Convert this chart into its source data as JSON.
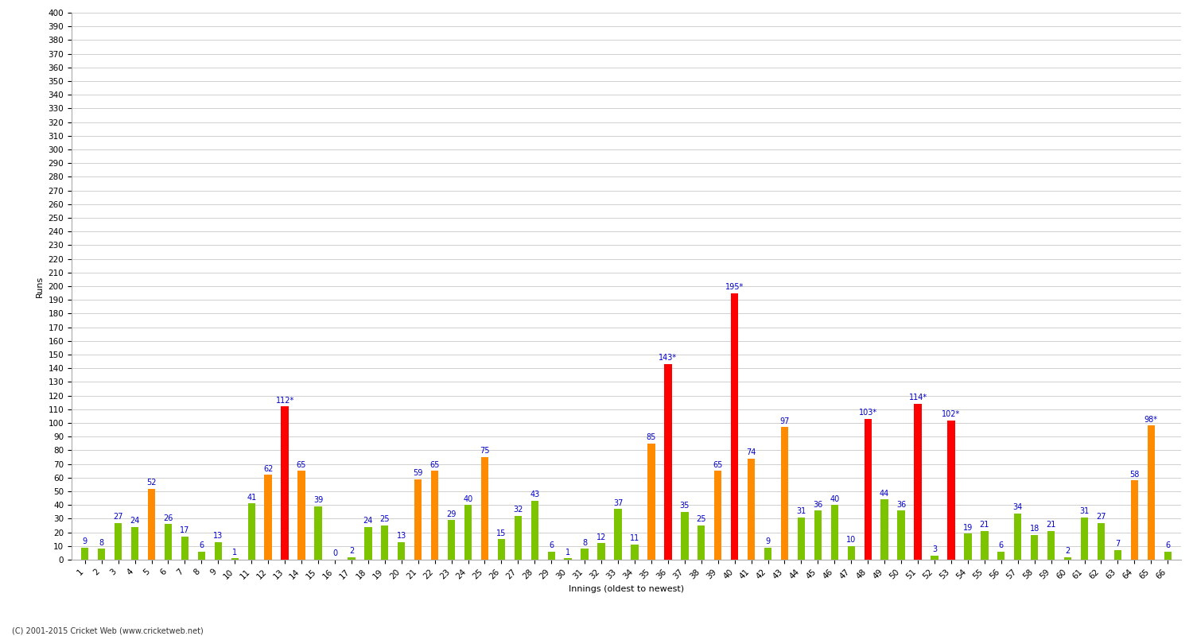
{
  "xlabel": "Innings (oldest to newest)",
  "ylabel": "Runs",
  "ylim": [
    0,
    400
  ],
  "innings": [
    1,
    2,
    3,
    4,
    5,
    6,
    7,
    8,
    9,
    10,
    11,
    12,
    13,
    14,
    15,
    16,
    17,
    18,
    19,
    20,
    21,
    22,
    23,
    24,
    25,
    26,
    27,
    28,
    29,
    30,
    31,
    32,
    33,
    34,
    35,
    36,
    37,
    38,
    39,
    40,
    41,
    42,
    43,
    44,
    45,
    46,
    47,
    48,
    49,
    50,
    51,
    52,
    53,
    54,
    55,
    56,
    57,
    58,
    59,
    60,
    61,
    62,
    63,
    64,
    65,
    66
  ],
  "scores": [
    9,
    8,
    27,
    24,
    52,
    26,
    17,
    6,
    13,
    1,
    41,
    62,
    112,
    65,
    39,
    0,
    2,
    24,
    25,
    13,
    59,
    65,
    29,
    40,
    75,
    15,
    32,
    43,
    6,
    1,
    8,
    12,
    37,
    11,
    85,
    143,
    35,
    25,
    65,
    195,
    74,
    9,
    97,
    31,
    36,
    40,
    10,
    103,
    44,
    36,
    114,
    3,
    102,
    19,
    21,
    6,
    34,
    18,
    21,
    2,
    31,
    27,
    7,
    58,
    98,
    6
  ],
  "not_out": [
    false,
    false,
    false,
    false,
    false,
    false,
    false,
    false,
    false,
    false,
    false,
    false,
    true,
    false,
    false,
    false,
    false,
    false,
    false,
    false,
    false,
    false,
    false,
    false,
    false,
    false,
    false,
    false,
    false,
    false,
    false,
    false,
    false,
    false,
    false,
    true,
    false,
    false,
    false,
    true,
    false,
    false,
    false,
    false,
    false,
    false,
    false,
    true,
    false,
    false,
    true,
    false,
    true,
    false,
    false,
    false,
    false,
    false,
    false,
    false,
    false,
    false,
    false,
    false,
    true,
    false
  ],
  "hundred_color": "#ff0000",
  "fifty_color": "#ff8c00",
  "normal_color": "#7dc400",
  "background_color": "#ffffff",
  "grid_color": "#d0d0d0",
  "label_color": "#0000cc",
  "footer": "(C) 2001-2015 Cricket Web (www.cricketweb.net)",
  "bar_width": 0.45,
  "label_fontsize": 7,
  "tick_fontsize": 7.5,
  "ylabel_fontsize": 8,
  "xlabel_fontsize": 8
}
